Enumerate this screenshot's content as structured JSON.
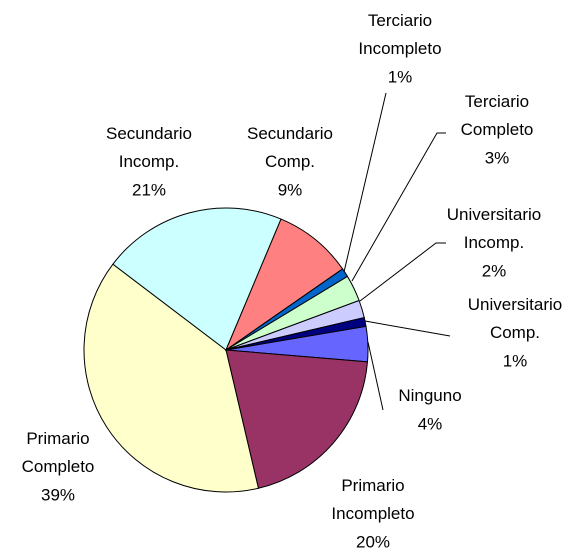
{
  "chart_data": {
    "type": "pie",
    "categories": [
      "Ninguno",
      "Primario Incompleto",
      "Primario Completo",
      "Secundario Incomp.",
      "Secundario Comp.",
      "Terciario Incompleto",
      "Terciario Completo",
      "Universitario Incomp.",
      "Universitario Comp."
    ],
    "values": [
      4,
      20,
      39,
      21,
      9,
      1,
      3,
      2,
      1
    ],
    "value_labels": [
      "4%",
      "20%",
      "39%",
      "21%",
      "9%",
      "1%",
      "3%",
      "2%",
      "1%"
    ],
    "colors": [
      "#6666ff",
      "#993366",
      "#ffffcc",
      "#ccffff",
      "#ff8080",
      "#0066cc",
      "#ccffcc",
      "#ccccff",
      "#000080"
    ]
  }
}
